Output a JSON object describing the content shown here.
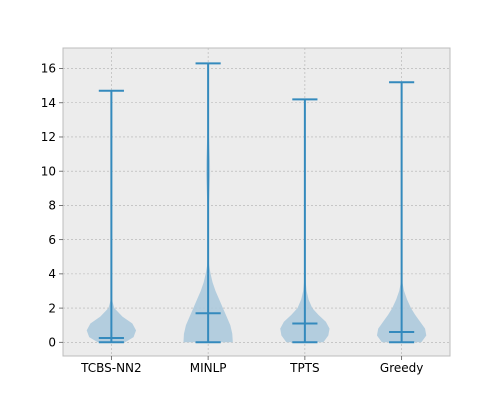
{
  "chart_data": {
    "type": "violin",
    "title": "",
    "xlabel": "",
    "ylabel": "",
    "ylim": [
      -0.8,
      17.2
    ],
    "grid": true,
    "y_ticks": [
      0,
      2,
      4,
      6,
      8,
      10,
      12,
      14,
      16
    ],
    "categories": [
      "TCBS-NN2",
      "MINLP",
      "TPTS",
      "Greedy"
    ],
    "series": [
      {
        "category": "TCBS-NN2",
        "min": 0.0,
        "median": 0.25,
        "max": 14.7,
        "density": [
          [
            0.0,
            0.55
          ],
          [
            0.3,
            0.9
          ],
          [
            0.7,
            1.0
          ],
          [
            1.1,
            0.85
          ],
          [
            1.5,
            0.45
          ],
          [
            2.0,
            0.12
          ],
          [
            2.5,
            0.02
          ],
          [
            3.0,
            0.0
          ]
        ]
      },
      {
        "category": "MINLP",
        "min": 0.0,
        "median": 1.7,
        "max": 16.3,
        "density": [
          [
            0.0,
            1.0
          ],
          [
            0.5,
            0.98
          ],
          [
            1.0,
            0.9
          ],
          [
            1.5,
            0.75
          ],
          [
            2.0,
            0.6
          ],
          [
            2.5,
            0.45
          ],
          [
            3.0,
            0.3
          ],
          [
            3.5,
            0.18
          ],
          [
            4.0,
            0.1
          ],
          [
            4.5,
            0.04
          ],
          [
            5.0,
            0.015
          ],
          [
            6.0,
            0.008
          ],
          [
            7.0,
            0.012
          ],
          [
            8.0,
            0.03
          ],
          [
            9.0,
            0.06
          ],
          [
            9.8,
            0.08
          ],
          [
            10.6,
            0.075
          ],
          [
            11.5,
            0.05
          ],
          [
            12.5,
            0.02
          ],
          [
            13.5,
            0.005
          ],
          [
            14.5,
            0.0
          ]
        ]
      },
      {
        "category": "TPTS",
        "min": 0.0,
        "median": 1.1,
        "max": 14.2,
        "density": [
          [
            0.0,
            0.75
          ],
          [
            0.4,
            0.95
          ],
          [
            0.8,
            1.0
          ],
          [
            1.2,
            0.85
          ],
          [
            1.6,
            0.55
          ],
          [
            2.0,
            0.3
          ],
          [
            2.5,
            0.15
          ],
          [
            3.0,
            0.07
          ],
          [
            3.5,
            0.035
          ],
          [
            4.0,
            0.015
          ],
          [
            4.5,
            0.004
          ],
          [
            5.0,
            0.0
          ]
        ]
      },
      {
        "category": "Greedy",
        "min": 0.0,
        "median": 0.6,
        "max": 15.2,
        "density": [
          [
            0.0,
            0.8
          ],
          [
            0.4,
            1.0
          ],
          [
            0.8,
            0.95
          ],
          [
            1.2,
            0.75
          ],
          [
            1.6,
            0.55
          ],
          [
            2.0,
            0.38
          ],
          [
            2.5,
            0.22
          ],
          [
            3.0,
            0.1
          ],
          [
            3.5,
            0.03
          ],
          [
            4.0,
            0.0
          ]
        ]
      }
    ],
    "colors": {
      "axes_bg": "#ececec",
      "grid": "#b0b0b0",
      "spine": "#bcbcbc",
      "line": "#348abd",
      "body": "#a9c8dc"
    }
  }
}
